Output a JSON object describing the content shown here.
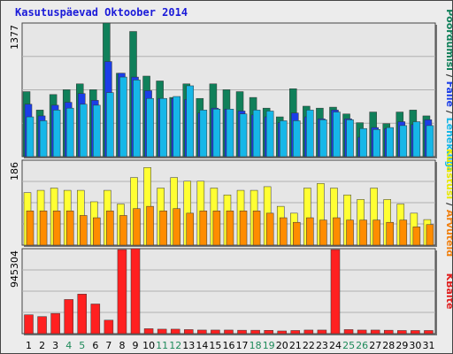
{
  "title": "Kasutuspäevad Oktoober 2014",
  "chart_data": [
    {
      "type": "bar",
      "panel": "top",
      "ytick_label": "1377",
      "right_labels": [
        {
          "text": "Pöördumisi",
          "color": "#10805a"
        },
        {
          "text": " / ",
          "color": "#333333"
        },
        {
          "text": "Faile",
          "color": "#1b3ee8"
        },
        {
          "text": " / ",
          "color": "#333333"
        },
        {
          "text": "Lehekülgi",
          "color": "#16b7e8"
        }
      ],
      "categories": [
        "1",
        "2",
        "3",
        "4",
        "5",
        "6",
        "7",
        "8",
        "9",
        "10",
        "11",
        "12",
        "13",
        "14",
        "15",
        "16",
        "17",
        "18",
        "19",
        "20",
        "21",
        "22",
        "23",
        "24",
        "25",
        "26",
        "27",
        "28",
        "29",
        "30",
        "31"
      ],
      "ylim": [
        0,
        1377
      ],
      "series": [
        {
          "name": "Pöördumisi",
          "color": "#10805a",
          "values": [
            670,
            480,
            640,
            690,
            750,
            690,
            1377,
            860,
            1290,
            830,
            780,
            610,
            750,
            600,
            750,
            690,
            670,
            610,
            500,
            410,
            700,
            520,
            500,
            510,
            440,
            350,
            460,
            340,
            460,
            480,
            420
          ]
        },
        {
          "name": "Faile",
          "color": "#1b3ee8",
          "values": [
            540,
            420,
            530,
            560,
            650,
            580,
            980,
            860,
            820,
            680,
            600,
            600,
            590,
            450,
            500,
            490,
            470,
            430,
            410,
            350,
            450,
            410,
            390,
            480,
            390,
            200,
            300,
            290,
            360,
            330,
            380
          ]
        },
        {
          "name": "Lehekülgi",
          "color": "#16b7e8",
          "values": [
            410,
            370,
            480,
            500,
            540,
            530,
            660,
            820,
            790,
            600,
            600,
            620,
            730,
            480,
            490,
            490,
            440,
            480,
            470,
            370,
            370,
            480,
            380,
            460,
            380,
            290,
            280,
            300,
            320,
            360,
            320
          ]
        }
      ]
    },
    {
      "type": "bar",
      "panel": "middle",
      "ytick_label": "186",
      "right_labels": [
        {
          "text": "Külastusi",
          "color": "#e8e800"
        },
        {
          "text": " / ",
          "color": "#333333"
        },
        {
          "text": "Arvuteid",
          "color": "#f08010"
        }
      ],
      "categories": [
        "1",
        "2",
        "3",
        "4",
        "5",
        "6",
        "7",
        "8",
        "9",
        "10",
        "11",
        "12",
        "13",
        "14",
        "15",
        "16",
        "17",
        "18",
        "19",
        "20",
        "21",
        "22",
        "23",
        "24",
        "25",
        "26",
        "27",
        "28",
        "29",
        "30",
        "31"
      ],
      "ylim": [
        0,
        186
      ],
      "series": [
        {
          "name": "Külastusi",
          "color": "#ffff33",
          "values": [
            115,
            120,
            125,
            120,
            120,
            95,
            120,
            90,
            148,
            170,
            125,
            148,
            140,
            140,
            125,
            110,
            120,
            120,
            128,
            85,
            70,
            125,
            135,
            125,
            110,
            100,
            125,
            100,
            90,
            70,
            56
          ]
        },
        {
          "name": "Arvuteid",
          "color": "#ff8c00",
          "values": [
            75,
            75,
            75,
            75,
            65,
            60,
            75,
            65,
            80,
            85,
            75,
            80,
            70,
            75,
            75,
            75,
            75,
            75,
            70,
            60,
            50,
            60,
            55,
            60,
            55,
            55,
            55,
            50,
            55,
            40,
            45
          ]
        }
      ]
    },
    {
      "type": "bar",
      "panel": "bottom",
      "ytick_label": "945304",
      "right_labels": [
        {
          "text": "KBaite",
          "color": "#e02020"
        }
      ],
      "categories": [
        "1",
        "2",
        "3",
        "4",
        "5",
        "6",
        "7",
        "8",
        "9",
        "10",
        "11",
        "12",
        "13",
        "14",
        "15",
        "16",
        "17",
        "18",
        "19",
        "20",
        "21",
        "22",
        "23",
        "24",
        "25",
        "26",
        "27",
        "28",
        "29",
        "30",
        "31"
      ],
      "weekend_days": [
        4,
        5,
        11,
        12,
        18,
        19,
        25,
        26
      ],
      "ylim": [
        0,
        945304
      ],
      "series": [
        {
          "name": "KBaite",
          "color": "#ff2020",
          "values": [
            210000,
            190000,
            225000,
            380000,
            440000,
            330000,
            150000,
            935000,
            945304,
            55000,
            50000,
            50000,
            45000,
            40000,
            40000,
            40000,
            38000,
            38000,
            37000,
            30000,
            35000,
            40000,
            40000,
            935000,
            45000,
            40000,
            40000,
            38000,
            35000,
            35000,
            35000
          ]
        }
      ]
    }
  ]
}
